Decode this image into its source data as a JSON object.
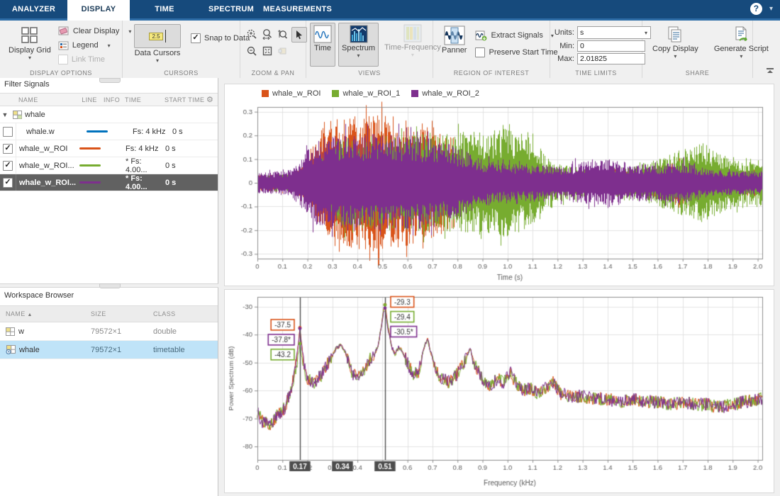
{
  "tabs": [
    {
      "label": "ANALYZER",
      "active": false
    },
    {
      "label": "DISPLAY",
      "active": true
    },
    {
      "label": "TIME",
      "active": false
    },
    {
      "label": "SPECTRUM",
      "active": false
    },
    {
      "label": "MEASUREMENTS",
      "active": false
    }
  ],
  "help_glyph": "?",
  "ribbon": {
    "display_options": {
      "label": "DISPLAY OPTIONS",
      "display_grid": "Display Grid",
      "clear_display": "Clear Display",
      "legend": "Legend",
      "link_time": "Link Time"
    },
    "cursors": {
      "label": "CURSORS",
      "data_cursors": "Data Cursors",
      "badge": "2.5",
      "snap": "Snap to Data",
      "snap_checked": "✓"
    },
    "zoom_pan": {
      "label": "ZOOM & PAN"
    },
    "views": {
      "label": "VIEWS",
      "time": "Time",
      "spectrum": "Spectrum",
      "time_frequency": "Time-Frequency"
    },
    "roi": {
      "label": "REGION OF INTEREST",
      "panner": "Panner",
      "extract": "Extract Signals",
      "preserve": "Preserve Start Time"
    },
    "time_limits": {
      "label": "TIME LIMITS",
      "units_label": "Units:",
      "units_value": "s",
      "min_label": "Min:",
      "min_value": "0",
      "max_label": "Max:",
      "max_value": "2.01825"
    },
    "share": {
      "label": "SHARE",
      "copy": "Copy Display",
      "generate": "Generate Script"
    }
  },
  "left_panel": {
    "filter_title": "Filter Signals",
    "signal_table": {
      "headers": {
        "name": "NAME",
        "line": "LINE",
        "info": "INFO",
        "time": "TIME",
        "start": "START TIME"
      },
      "rows": [
        {
          "group": true,
          "name": "whale"
        },
        {
          "checked": false,
          "name": "whale.w",
          "color": "#0072BD",
          "time": "Fs: 4 kHz",
          "start": "0 s",
          "selected": false
        },
        {
          "checked": true,
          "name": "whale_w_ROI",
          "color": "#D95319",
          "time": "Fs: 4 kHz",
          "start": "0 s",
          "selected": false
        },
        {
          "checked": true,
          "name": "whale_w_ROI...",
          "color": "#77AC30",
          "time": "* Fs: 4.00...",
          "start": "0 s",
          "selected": false
        },
        {
          "checked": true,
          "name": "whale_w_ROI...",
          "color": "#7E2F8E",
          "time": "* Fs: 4.00...",
          "start": "0 s",
          "selected": true
        }
      ]
    },
    "workspace": {
      "title": "Workspace Browser",
      "headers": {
        "name": "NAME",
        "sort": "▲",
        "size": "SIZE",
        "cls": "CLASS"
      },
      "rows": [
        {
          "name": "w",
          "size": "79572×1",
          "cls": "double",
          "selected": false,
          "icon": "matrix"
        },
        {
          "name": "whale",
          "size": "79572×1",
          "cls": "timetable",
          "selected": true,
          "icon": "timetable"
        }
      ]
    }
  },
  "chart_data": [
    {
      "type": "line",
      "id": "time_plot",
      "xlabel": "Time (s)",
      "ylabel": "",
      "xlim": [
        0,
        2.01825
      ],
      "ylim": [
        -0.32,
        0.32
      ],
      "xtick_labels": [
        "0",
        "0.1",
        "0.2",
        "0.3",
        "0.4",
        "0.5",
        "0.6",
        "0.7",
        "0.8",
        "0.9",
        "1.0",
        "1.1",
        "1.2",
        "1.3",
        "1.4",
        "1.5",
        "1.6",
        "1.7",
        "1.8",
        "1.9",
        "2.0"
      ],
      "ytick_labels": [
        "0.3",
        "0.2",
        "0.1",
        "0",
        "-0.1",
        "-0.2",
        "-0.3"
      ],
      "grid": true,
      "legend_position": "top",
      "series": [
        {
          "name": "whale_w_ROI",
          "color": "#D95319",
          "envelope": [
            [
              0,
              0.035
            ],
            [
              0.15,
              0.04
            ],
            [
              0.2,
              0.09
            ],
            [
              0.25,
              0.22
            ],
            [
              0.3,
              0.27
            ],
            [
              0.45,
              0.29
            ],
            [
              0.55,
              0.28
            ],
            [
              0.62,
              0.26
            ],
            [
              0.7,
              0.24
            ],
            [
              0.78,
              0.2
            ],
            [
              0.82,
              0.12
            ],
            [
              0.88,
              0.07
            ],
            [
              0.95,
              0.05
            ],
            [
              1.1,
              0.045
            ],
            [
              1.3,
              0.04
            ],
            [
              1.5,
              0.05
            ],
            [
              1.6,
              0.07
            ],
            [
              1.68,
              0.1
            ],
            [
              1.75,
              0.06
            ],
            [
              1.85,
              0.04
            ],
            [
              2.0,
              0.06
            ],
            [
              2.018,
              0.06
            ]
          ]
        },
        {
          "name": "whale_w_ROI_1",
          "color": "#77AC30",
          "envelope": [
            [
              0,
              0.035
            ],
            [
              0.2,
              0.04
            ],
            [
              0.27,
              0.12
            ],
            [
              0.32,
              0.19
            ],
            [
              0.5,
              0.2
            ],
            [
              0.65,
              0.21
            ],
            [
              0.8,
              0.22
            ],
            [
              0.9,
              0.22
            ],
            [
              1.0,
              0.23
            ],
            [
              1.08,
              0.2
            ],
            [
              1.15,
              0.12
            ],
            [
              1.2,
              0.08
            ],
            [
              1.35,
              0.06
            ],
            [
              1.5,
              0.07
            ],
            [
              1.6,
              0.1
            ],
            [
              1.7,
              0.14
            ],
            [
              1.78,
              0.17
            ],
            [
              1.85,
              0.13
            ],
            [
              1.95,
              0.09
            ],
            [
              2.018,
              0.1
            ]
          ]
        },
        {
          "name": "whale_w_ROI_2",
          "color": "#7E2F8E",
          "envelope": [
            [
              0,
              0.045
            ],
            [
              0.12,
              0.05
            ],
            [
              0.17,
              0.1
            ],
            [
              0.22,
              0.17
            ],
            [
              0.3,
              0.2
            ],
            [
              0.5,
              0.21
            ],
            [
              0.6,
              0.2
            ],
            [
              0.7,
              0.19
            ],
            [
              0.8,
              0.15
            ],
            [
              0.9,
              0.1
            ],
            [
              1.0,
              0.08
            ],
            [
              1.1,
              0.08
            ],
            [
              1.2,
              0.07
            ],
            [
              1.3,
              0.09
            ],
            [
              1.42,
              0.1
            ],
            [
              1.5,
              0.08
            ],
            [
              1.6,
              0.08
            ],
            [
              1.7,
              0.09
            ],
            [
              1.8,
              0.06
            ],
            [
              1.9,
              0.05
            ],
            [
              2.018,
              0.05
            ]
          ]
        }
      ]
    },
    {
      "type": "line",
      "id": "spectrum_plot",
      "xlabel": "Frequency (kHz)",
      "ylabel": "Power Spectrum (dB)",
      "xlim": [
        0,
        2.01825
      ],
      "ylim": [
        -84.8,
        -26.5
      ],
      "xtick_labels": [
        "0",
        "0.1",
        "0.2",
        "0.3",
        "0.4",
        "0.5",
        "0.6",
        "0.7",
        "0.8",
        "0.9",
        "1.0",
        "1.1",
        "1.2",
        "1.3",
        "1.4",
        "1.5",
        "1.6",
        "1.7",
        "1.8",
        "1.9",
        "2.0"
      ],
      "ytick_labels": [
        "-30",
        "-40",
        "-50",
        "-60",
        "-70",
        "-80"
      ],
      "grid": true,
      "series_colors": [
        "#D95319",
        "#77AC30",
        "#7E2F8E"
      ],
      "baseline": [
        [
          0,
          -68
        ],
        [
          0.02,
          -71
        ],
        [
          0.05,
          -72
        ],
        [
          0.08,
          -69
        ],
        [
          0.11,
          -66
        ],
        [
          0.135,
          -60
        ],
        [
          0.155,
          -50
        ],
        [
          0.17,
          -38
        ],
        [
          0.185,
          -50
        ],
        [
          0.2,
          -56
        ],
        [
          0.23,
          -57
        ],
        [
          0.26,
          -54
        ],
        [
          0.29,
          -49
        ],
        [
          0.315,
          -45
        ],
        [
          0.335,
          -43.5
        ],
        [
          0.355,
          -47
        ],
        [
          0.375,
          -53
        ],
        [
          0.4,
          -56
        ],
        [
          0.425,
          -53
        ],
        [
          0.445,
          -49
        ],
        [
          0.465,
          -48
        ],
        [
          0.485,
          -43
        ],
        [
          0.505,
          -31
        ],
        [
          0.51,
          -29.5
        ],
        [
          0.52,
          -36
        ],
        [
          0.535,
          -44
        ],
        [
          0.55,
          -47
        ],
        [
          0.565,
          -44.5
        ],
        [
          0.58,
          -46
        ],
        [
          0.6,
          -50
        ],
        [
          0.62,
          -54
        ],
        [
          0.645,
          -53
        ],
        [
          0.665,
          -45
        ],
        [
          0.68,
          -41.5
        ],
        [
          0.695,
          -47
        ],
        [
          0.715,
          -53
        ],
        [
          0.74,
          -56
        ],
        [
          0.77,
          -57
        ],
        [
          0.8,
          -54
        ],
        [
          0.825,
          -50
        ],
        [
          0.85,
          -45
        ],
        [
          0.87,
          -51
        ],
        [
          0.9,
          -56
        ],
        [
          0.93,
          -58
        ],
        [
          0.96,
          -56
        ],
        [
          0.985,
          -57
        ],
        [
          1.01,
          -53
        ],
        [
          1.03,
          -57
        ],
        [
          1.06,
          -60
        ],
        [
          1.09,
          -59
        ],
        [
          1.12,
          -61
        ],
        [
          1.15,
          -59
        ],
        [
          1.18,
          -57
        ],
        [
          1.21,
          -61
        ],
        [
          1.25,
          -62
        ],
        [
          1.3,
          -62
        ],
        [
          1.35,
          -63
        ],
        [
          1.4,
          -63
        ],
        [
          1.45,
          -64
        ],
        [
          1.5,
          -63
        ],
        [
          1.55,
          -64
        ],
        [
          1.6,
          -64
        ],
        [
          1.65,
          -65
        ],
        [
          1.7,
          -64
        ],
        [
          1.75,
          -65
        ],
        [
          1.8,
          -65
        ],
        [
          1.85,
          -66
        ],
        [
          1.9,
          -65
        ],
        [
          1.95,
          -64
        ],
        [
          2.018,
          -63
        ]
      ],
      "cursors": [
        {
          "x": 0.17,
          "badge": "0.17",
          "side": "left",
          "points": [
            {
              "series": 0,
              "db": -37.5,
              "label": "-37.5"
            },
            {
              "series": 2,
              "db": -37.8,
              "label": "-37.8*"
            },
            {
              "series": 1,
              "db": -43.2,
              "label": "-43.2"
            }
          ]
        },
        {
          "x": 0.51,
          "badge": "0.51",
          "side": "right",
          "points": [
            {
              "series": 0,
              "db": -29.3,
              "label": "-29.3"
            },
            {
              "series": 1,
              "db": -29.4,
              "label": "-29.4"
            },
            {
              "series": 2,
              "db": -30.5,
              "label": "-30.5*"
            }
          ]
        }
      ],
      "delta_badge": {
        "x": 0.34,
        "label": "0.34"
      }
    }
  ]
}
